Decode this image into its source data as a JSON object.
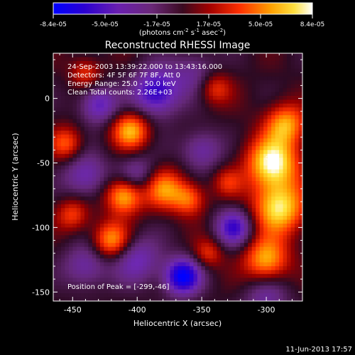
{
  "colorbar": {
    "tick_labels": [
      "-8.4e-05",
      "-5.0e-05",
      "-1.7e-05",
      "1.7e-05",
      "5.0e-05",
      "8.4e-05"
    ],
    "unit_text": "(photons cm",
    "unit_exp1": "-2",
    "unit_mid": " s",
    "unit_exp2": "-1",
    "unit_mid2": " asec",
    "unit_exp3": "-2",
    "unit_close": ")"
  },
  "chart_data": {
    "type": "heatmap",
    "title": "Reconstructed RHESSI Image",
    "xlabel": "Heliocentric X (arcsec)",
    "ylabel": "Heliocentric Y (arcsec)",
    "xlim": [
      -465,
      -272
    ],
    "ylim": [
      -157,
      35
    ],
    "x_ticks": [
      -450,
      -400,
      -350,
      -300
    ],
    "y_ticks": [
      -150,
      -100,
      -50,
      0
    ],
    "x_tick_labels": [
      "-450",
      "-400",
      "-350",
      "-300"
    ],
    "y_tick_labels": [
      "-150",
      "-100",
      "-50",
      "0"
    ],
    "colorscale_range": [
      -8.4e-05,
      8.4e-05
    ],
    "colormap": "hot-with-negative-purple-blue",
    "info_lines": [
      "24-Sep-2003 13:39:22.000 to 13:43:16.000",
      "Detectors: 4F 5F 6F 7F 8F, Att 0",
      "Energy Range: 25.0 - 50.0 keV",
      "Clean    Total counts: 2.26E+03"
    ],
    "peak_label": "Position of Peak = [-299,-46]",
    "peak_position": [
      -299,
      -46
    ],
    "blobs": [
      {
        "x": -365,
        "y": -138,
        "v": -1.0,
        "s": 10
      },
      {
        "x": -385,
        "y": 5,
        "v": -0.8,
        "s": 13
      },
      {
        "x": -325,
        "y": -100,
        "v": -0.7,
        "s": 10
      },
      {
        "x": -430,
        "y": -5,
        "v": -0.6,
        "s": 10
      },
      {
        "x": -440,
        "y": -60,
        "v": -0.5,
        "s": 12
      },
      {
        "x": -400,
        "y": -60,
        "v": -0.45,
        "s": 11
      },
      {
        "x": -400,
        "y": -125,
        "v": -0.5,
        "s": 13
      },
      {
        "x": -300,
        "y": -155,
        "v": -0.4,
        "s": 12
      },
      {
        "x": -350,
        "y": -40,
        "v": -0.45,
        "s": 11
      },
      {
        "x": -440,
        "y": -130,
        "v": -0.45,
        "s": 12
      },
      {
        "x": -355,
        "y": 20,
        "v": -0.35,
        "s": 12
      },
      {
        "x": -405,
        "y": -25,
        "v": 0.75,
        "s": 10
      },
      {
        "x": -410,
        "y": -75,
        "v": 0.85,
        "s": 10
      },
      {
        "x": -380,
        "y": -70,
        "v": 0.65,
        "s": 11
      },
      {
        "x": -360,
        "y": -78,
        "v": 0.55,
        "s": 9
      },
      {
        "x": -295,
        "y": -50,
        "v": 1.0,
        "s": 14
      },
      {
        "x": -290,
        "y": -85,
        "v": 0.9,
        "s": 14
      },
      {
        "x": -285,
        "y": -20,
        "v": 0.7,
        "s": 11
      },
      {
        "x": -300,
        "y": -125,
        "v": 0.75,
        "s": 12
      },
      {
        "x": -420,
        "y": -110,
        "v": 0.7,
        "s": 10
      },
      {
        "x": -450,
        "y": -90,
        "v": 0.45,
        "s": 9
      },
      {
        "x": -455,
        "y": -35,
        "v": 0.5,
        "s": 9
      },
      {
        "x": -340,
        "y": 8,
        "v": 0.45,
        "s": 9
      },
      {
        "x": -345,
        "y": -120,
        "v": 0.4,
        "s": 8
      },
      {
        "x": -440,
        "y": 20,
        "v": 0.4,
        "s": 8
      },
      {
        "x": -330,
        "y": -65,
        "v": 0.35,
        "s": 8
      }
    ]
  },
  "footer_date": "11-Jun-2013 17:57"
}
